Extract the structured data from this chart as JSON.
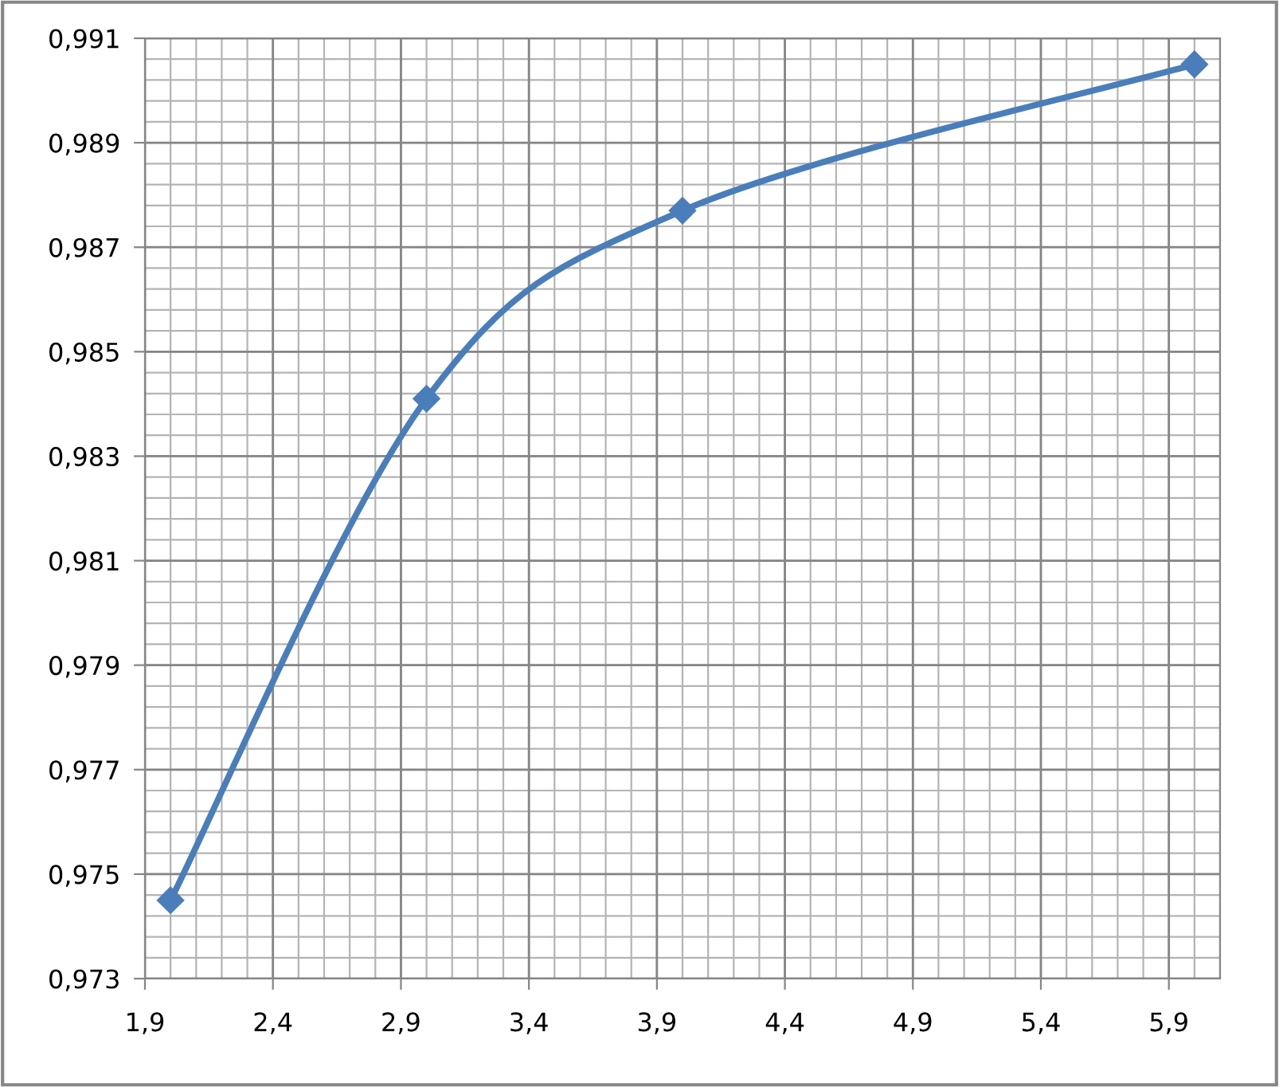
{
  "chart_data": {
    "type": "line",
    "series": [
      {
        "color": "#4a7ebb",
        "x": [
          2,
          3,
          4,
          6
        ],
        "values": [
          0.9745,
          0.9841,
          0.9877,
          0.9905
        ]
      }
    ],
    "marker": "diamond",
    "line_style": "solid",
    "grid": true,
    "xlim": [
      1.9,
      6.1
    ],
    "xticks": [
      {
        "value": 1.9,
        "label": "1,9"
      },
      {
        "value": 2.4,
        "label": "2,4"
      },
      {
        "value": 2.9,
        "label": "2,9"
      },
      {
        "value": 3.4,
        "label": "3,4"
      },
      {
        "value": 3.9,
        "label": "3,9"
      },
      {
        "value": 4.4,
        "label": "4,4"
      },
      {
        "value": 4.9,
        "label": "4,9"
      },
      {
        "value": 5.4,
        "label": "5,4"
      },
      {
        "value": 5.9,
        "label": "5,9"
      }
    ],
    "ylim": [
      0.973,
      0.991
    ],
    "yticks": [
      {
        "value": 0.973,
        "label": "0,973"
      },
      {
        "value": 0.975,
        "label": "0,975"
      },
      {
        "value": 0.977,
        "label": "0,977"
      },
      {
        "value": 0.979,
        "label": "0,979"
      },
      {
        "value": 0.981,
        "label": "0,981"
      },
      {
        "value": 0.983,
        "label": "0,983"
      },
      {
        "value": 0.985,
        "label": "0,985"
      },
      {
        "value": 0.987,
        "label": "0,987"
      },
      {
        "value": 0.989,
        "label": "0,989"
      },
      {
        "value": 0.991,
        "label": "0,991"
      }
    ]
  }
}
